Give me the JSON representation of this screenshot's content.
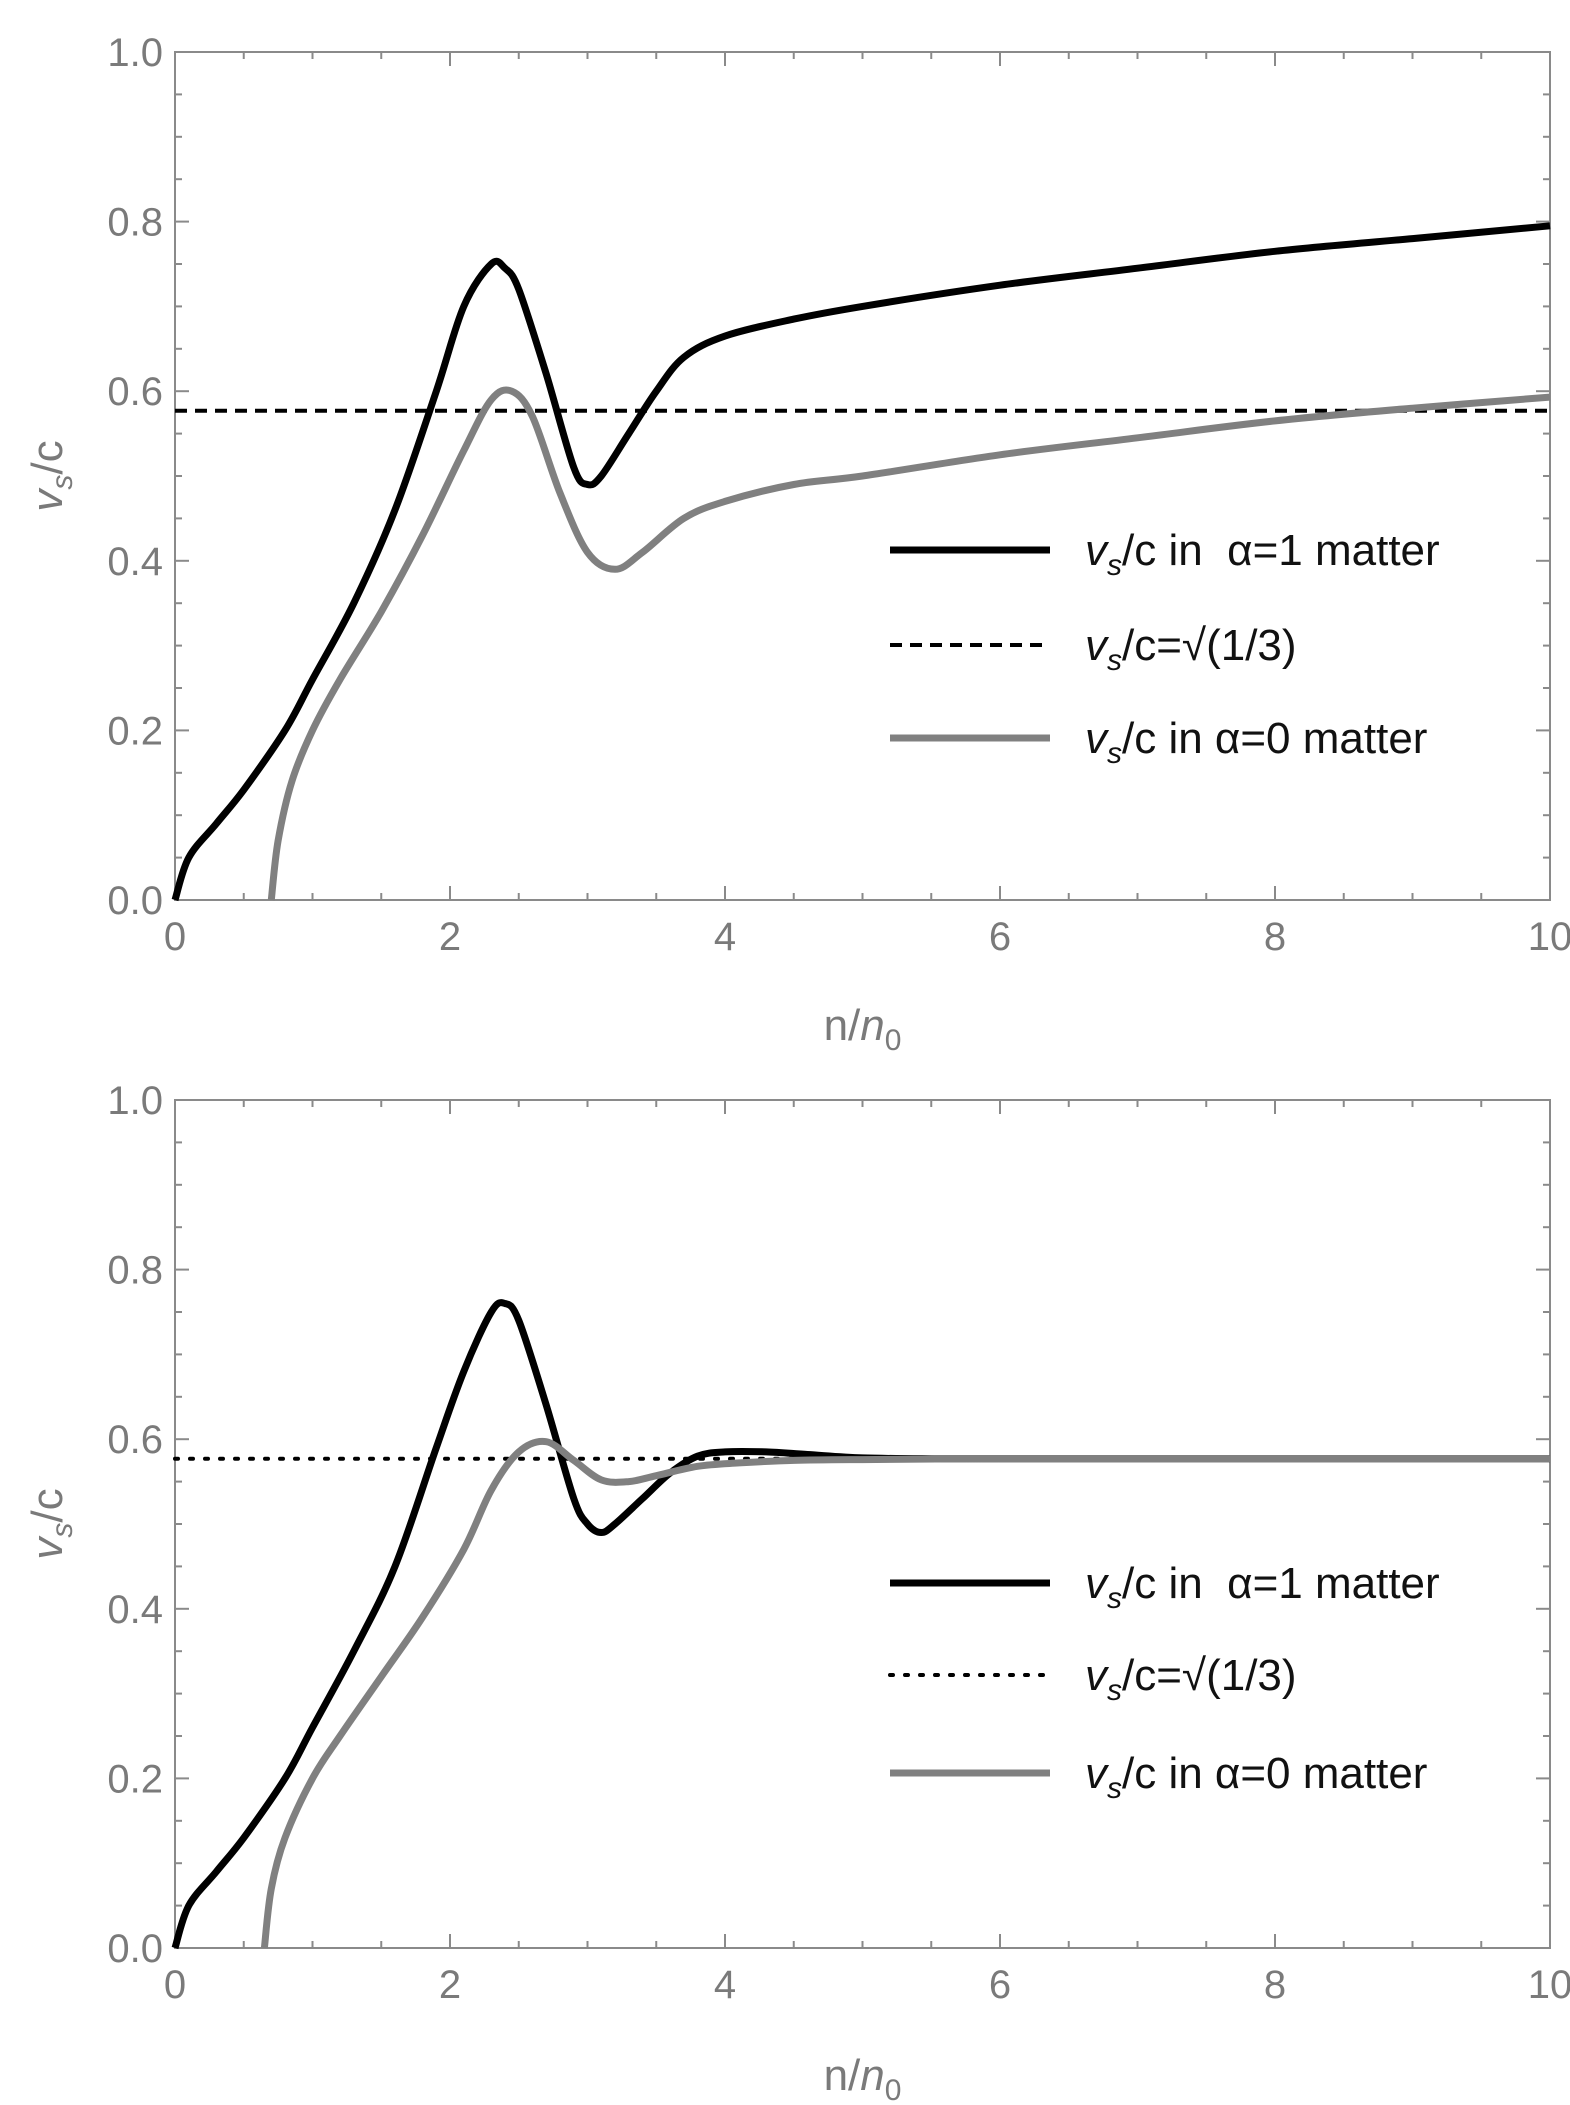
{
  "chart_data": [
    {
      "type": "line",
      "title": "",
      "xlabel": "n/n0",
      "xlabel_parts": {
        "base": "n/",
        "italic": "n",
        "sub": "0"
      },
      "ylabel": "vs/c",
      "ylabel_parts": {
        "italic": "v",
        "sub": "s",
        "rest": "/c"
      },
      "xlim": [
        0,
        10
      ],
      "ylim": [
        0,
        1
      ],
      "xticks": [
        "0",
        "2",
        "4",
        "6",
        "8",
        "10"
      ],
      "yticks": [
        "0.0",
        "0.2",
        "0.4",
        "0.6",
        "0.8",
        "1.0"
      ],
      "grid": false,
      "legend_position": "center-right",
      "colors": {
        "black": "#000000",
        "gray": "#808080"
      },
      "series": [
        {
          "name": "vs/c in α=1 matter",
          "legend": {
            "v": "v",
            "s": "s",
            "text": "/c in  α=1 matter"
          },
          "color": "#000000",
          "style": "solid",
          "x": [
            0,
            0.1,
            0.3,
            0.5,
            0.8,
            1.0,
            1.3,
            1.6,
            1.9,
            2.1,
            2.3,
            2.4,
            2.5,
            2.7,
            2.9,
            3.0,
            3.1,
            3.3,
            3.5,
            3.7,
            4.0,
            4.5,
            5,
            6,
            7,
            8,
            9,
            10
          ],
          "y": [
            0,
            0.05,
            0.09,
            0.13,
            0.2,
            0.26,
            0.35,
            0.46,
            0.6,
            0.7,
            0.75,
            0.745,
            0.72,
            0.62,
            0.51,
            0.49,
            0.5,
            0.55,
            0.6,
            0.64,
            0.665,
            0.685,
            0.7,
            0.725,
            0.745,
            0.765,
            0.78,
            0.795
          ]
        },
        {
          "name": "vs/c=√(1/3)",
          "legend": {
            "v": "v",
            "s": "s",
            "text": "/c=√(1/3)"
          },
          "color": "#000000",
          "style": "dashed",
          "x": [
            0,
            10
          ],
          "y": [
            0.577,
            0.577
          ]
        },
        {
          "name": "vs/c in α=0 matter",
          "legend": {
            "v": "v",
            "s": "s",
            "text": "/c in α=0 matter"
          },
          "color": "#808080",
          "style": "solid",
          "x": [
            0.7,
            0.75,
            0.85,
            1.0,
            1.2,
            1.5,
            1.8,
            2.1,
            2.3,
            2.45,
            2.6,
            2.8,
            3.0,
            3.2,
            3.4,
            3.7,
            4.0,
            4.5,
            5,
            6,
            7,
            8,
            9,
            10
          ],
          "y": [
            0,
            0.07,
            0.14,
            0.2,
            0.26,
            0.34,
            0.43,
            0.53,
            0.59,
            0.6,
            0.57,
            0.48,
            0.41,
            0.39,
            0.41,
            0.45,
            0.47,
            0.49,
            0.5,
            0.525,
            0.545,
            0.565,
            0.58,
            0.593
          ]
        }
      ]
    },
    {
      "type": "line",
      "title": "",
      "xlabel": "n/n0",
      "xlabel_parts": {
        "base": "n/",
        "italic": "n",
        "sub": "0"
      },
      "ylabel": "vs/c",
      "ylabel_parts": {
        "italic": "v",
        "sub": "s",
        "rest": "/c"
      },
      "xlim": [
        0,
        10
      ],
      "ylim": [
        0,
        1
      ],
      "xticks": [
        "0",
        "2",
        "4",
        "6",
        "8",
        "10"
      ],
      "yticks": [
        "0.0",
        "0.2",
        "0.4",
        "0.6",
        "0.8",
        "1.0"
      ],
      "grid": false,
      "legend_position": "center-right",
      "series": [
        {
          "name": "vs/c in α=1 matter",
          "legend": {
            "v": "v",
            "s": "s",
            "text": "/c in  α=1 matter"
          },
          "color": "#000000",
          "style": "solid",
          "x": [
            0,
            0.1,
            0.3,
            0.5,
            0.8,
            1.0,
            1.3,
            1.6,
            1.9,
            2.1,
            2.3,
            2.4,
            2.5,
            2.7,
            2.9,
            3.0,
            3.1,
            3.2,
            3.4,
            3.6,
            3.8,
            4.0,
            4.3,
            4.6,
            5.0,
            5.5,
            6,
            7,
            8,
            9,
            10
          ],
          "y": [
            0,
            0.05,
            0.09,
            0.13,
            0.2,
            0.26,
            0.35,
            0.45,
            0.59,
            0.68,
            0.75,
            0.76,
            0.74,
            0.64,
            0.53,
            0.5,
            0.49,
            0.5,
            0.53,
            0.56,
            0.58,
            0.585,
            0.585,
            0.582,
            0.578,
            0.577,
            0.577,
            0.577,
            0.577,
            0.577,
            0.577
          ]
        },
        {
          "name": "vs/c=√(1/3)",
          "legend": {
            "v": "v",
            "s": "s",
            "text": "/c=√(1/3)"
          },
          "color": "#000000",
          "style": "dotted",
          "x": [
            0,
            10
          ],
          "y": [
            0.577,
            0.577
          ]
        },
        {
          "name": "vs/c in α=0 matter",
          "legend": {
            "v": "v",
            "s": "s",
            "text": "/c in α=0 matter"
          },
          "color": "#808080",
          "style": "solid",
          "x": [
            0.65,
            0.7,
            0.8,
            1.0,
            1.2,
            1.5,
            1.8,
            2.1,
            2.3,
            2.5,
            2.7,
            2.9,
            3.1,
            3.3,
            3.5,
            3.8,
            4.1,
            4.5,
            5,
            6,
            7,
            8,
            9,
            10
          ],
          "y": [
            0,
            0.07,
            0.13,
            0.2,
            0.25,
            0.32,
            0.39,
            0.47,
            0.54,
            0.585,
            0.597,
            0.575,
            0.552,
            0.55,
            0.557,
            0.568,
            0.572,
            0.575,
            0.576,
            0.577,
            0.577,
            0.577,
            0.577,
            0.577
          ]
        }
      ]
    }
  ]
}
